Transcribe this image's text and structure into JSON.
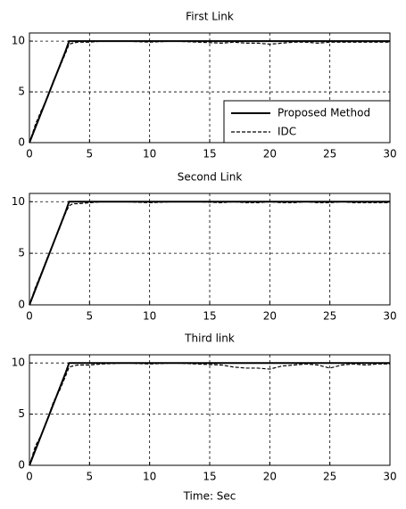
{
  "chart_data": [
    {
      "type": "line",
      "title": "First Link",
      "x": [
        0,
        0.5,
        1,
        1.5,
        2,
        2.5,
        3,
        3.3,
        3.6,
        4,
        5,
        6,
        8,
        10,
        12,
        14,
        16,
        17,
        18,
        19,
        20,
        21,
        22,
        23,
        24,
        25,
        26,
        27,
        28,
        29,
        30
      ],
      "series": [
        {
          "name": "Proposed Method",
          "color": "#000000",
          "linestyle": "solid",
          "values": [
            0,
            1.5,
            3,
            4.5,
            6,
            7.5,
            9,
            10,
            10,
            10,
            10,
            10,
            10,
            10,
            10,
            10,
            10,
            10,
            10,
            10,
            10,
            10,
            10,
            10,
            10,
            10,
            10,
            10,
            10,
            10,
            10
          ]
        },
        {
          "name": "IDC",
          "color": "#000000",
          "linestyle": "dashed",
          "values": [
            0,
            1.8,
            3.2,
            4.4,
            6.1,
            7.4,
            8.8,
            9.7,
            9.8,
            9.9,
            9.9,
            10,
            10,
            9.9,
            10,
            9.9,
            9.8,
            9.9,
            9.8,
            9.8,
            9.7,
            9.8,
            9.9,
            9.9,
            9.8,
            9.9,
            9.9,
            9.9,
            9.9,
            9.9,
            9.9
          ]
        }
      ],
      "xlim": [
        0,
        30
      ],
      "ylim": [
        0,
        10.8
      ],
      "xticks": [
        0,
        5,
        10,
        15,
        20,
        25,
        30
      ],
      "yticks": [
        0,
        5,
        10
      ],
      "grid": true,
      "legend": "lower right"
    },
    {
      "type": "line",
      "title": "Second Link",
      "x": [
        0,
        0.5,
        1,
        1.5,
        2,
        2.5,
        3,
        3.3,
        3.6,
        4,
        5,
        6,
        8,
        10,
        12,
        14,
        16,
        17,
        18,
        19,
        20,
        21,
        22,
        23,
        24,
        25,
        26,
        27,
        28,
        29,
        30
      ],
      "series": [
        {
          "color": "#000000",
          "linestyle": "solid",
          "values": [
            0,
            1.5,
            3,
            4.5,
            6,
            7.5,
            9,
            10,
            10,
            10,
            10,
            10,
            10,
            10,
            10,
            10,
            10,
            10,
            10,
            10,
            10,
            10,
            10,
            10,
            10,
            10,
            10,
            10,
            10,
            10,
            10
          ]
        },
        {
          "color": "#000000",
          "linestyle": "dashed",
          "values": [
            0,
            1.7,
            3.1,
            4.6,
            6,
            7.4,
            8.9,
            9.6,
            9.8,
            9.8,
            9.9,
            10,
            10,
            9.9,
            10,
            10,
            9.9,
            10,
            9.9,
            9.9,
            10,
            9.9,
            9.9,
            10,
            9.9,
            9.9,
            10,
            9.9,
            9.9,
            9.9,
            9.9
          ]
        }
      ],
      "xlim": [
        0,
        30
      ],
      "ylim": [
        0,
        10.8
      ],
      "xticks": [
        0,
        5,
        10,
        15,
        20,
        25,
        30
      ],
      "yticks": [
        0,
        5,
        10
      ],
      "grid": true
    },
    {
      "type": "line",
      "title": "Third link",
      "xlabel": "Time: Sec",
      "x": [
        0,
        0.5,
        1,
        1.5,
        2,
        2.5,
        3,
        3.3,
        3.6,
        4,
        5,
        6,
        8,
        10,
        12,
        14,
        16,
        17,
        18,
        19,
        20,
        21,
        22,
        23,
        24,
        25,
        26,
        27,
        28,
        29,
        30
      ],
      "series": [
        {
          "color": "#000000",
          "linestyle": "solid",
          "values": [
            0,
            1.5,
            3,
            4.5,
            6,
            7.5,
            9,
            10,
            10,
            10,
            10,
            10,
            10,
            10,
            10,
            10,
            10,
            10,
            10,
            10,
            10,
            10,
            10,
            10,
            10,
            10,
            10,
            10,
            10,
            10,
            10
          ]
        },
        {
          "color": "#000000",
          "linestyle": "dashed",
          "values": [
            0,
            1.9,
            3,
            4.5,
            6.2,
            7.3,
            8.7,
            9.6,
            9.7,
            9.8,
            9.8,
            9.9,
            10,
            9.9,
            10,
            9.9,
            9.8,
            9.6,
            9.5,
            9.5,
            9.4,
            9.7,
            9.8,
            9.9,
            9.8,
            9.5,
            9.8,
            9.9,
            9.8,
            9.9,
            9.9
          ]
        }
      ],
      "xlim": [
        0,
        30
      ],
      "ylim": [
        0,
        10.8
      ],
      "xticks": [
        0,
        5,
        10,
        15,
        20,
        25,
        30
      ],
      "yticks": [
        0,
        5,
        10
      ],
      "grid": true
    }
  ]
}
